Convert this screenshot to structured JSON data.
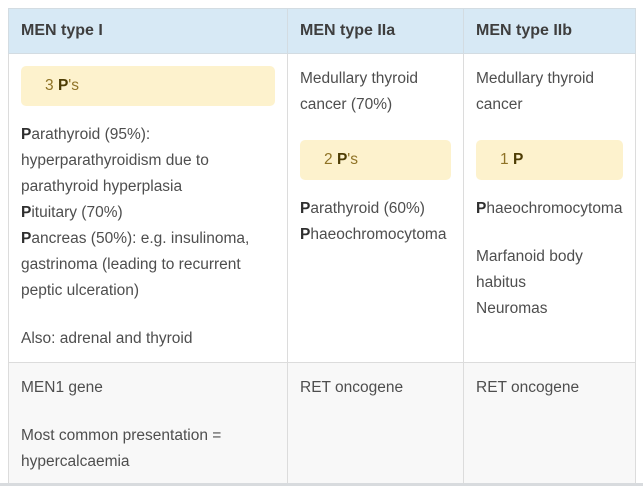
{
  "colors": {
    "header_bg": "#d7e9f5",
    "header_text": "#3e3e3e",
    "body_text": "#4e4e4e",
    "bold_text": "#2f2f2f",
    "border": "#dcdcdc",
    "highlight_bg": "#fdf2cd",
    "highlight_text": "#8f7326",
    "highlight_bold_text": "#4e3d04",
    "alt_row_bg": "#f8f8f8",
    "bottom_strip": "#d8dbde"
  },
  "table": {
    "columns": [
      {
        "header": "MEN type I",
        "row1": [
          {
            "highlight": true,
            "segments": [
              {
                "t": "3 "
              },
              {
                "t": "P",
                "b": true
              },
              {
                "t": "'s"
              }
            ]
          },
          {
            "segments": [
              {
                "t": "P",
                "b": true
              },
              {
                "t": "arathyroid (95%): hyperparathyroidism due to parathyroid hyperplasia"
              },
              {
                "br": true
              },
              {
                "t": "P",
                "b": true
              },
              {
                "t": "ituitary (70%)"
              },
              {
                "br": true
              },
              {
                "t": "P",
                "b": true
              },
              {
                "t": "ancreas (50%): e.g. insulinoma, gastrinoma (leading to recurrent peptic ulceration)"
              }
            ]
          },
          {
            "segments": [
              {
                "t": "Also: adrenal and thyroid"
              }
            ]
          }
        ],
        "row2": [
          {
            "segments": [
              {
                "t": "MEN1 gene"
              }
            ]
          },
          {
            "segments": [
              {
                "t": "Most common presentation = hypercalcaemia"
              }
            ]
          }
        ]
      },
      {
        "header": "MEN type IIa",
        "row1": [
          {
            "segments": [
              {
                "t": "Medullary thyroid cancer (70%)"
              }
            ]
          },
          {
            "highlight": true,
            "segments": [
              {
                "t": "2 "
              },
              {
                "t": "P",
                "b": true
              },
              {
                "t": "'s"
              }
            ]
          },
          {
            "segments": [
              {
                "t": "P",
                "b": true
              },
              {
                "t": "arathyroid (60%)"
              },
              {
                "br": true
              },
              {
                "t": "P",
                "b": true
              },
              {
                "t": "haeochromocytoma"
              }
            ]
          }
        ],
        "row2": [
          {
            "segments": [
              {
                "t": "RET oncogene"
              }
            ]
          }
        ]
      },
      {
        "header": "MEN type IIb",
        "row1": [
          {
            "segments": [
              {
                "t": "Medullary thyroid cancer"
              }
            ]
          },
          {
            "highlight": true,
            "segments": [
              {
                "t": "1 "
              },
              {
                "t": "P",
                "b": true
              }
            ]
          },
          {
            "segments": [
              {
                "t": "P",
                "b": true
              },
              {
                "t": "haeochromocytoma"
              }
            ]
          },
          {
            "segments": [
              {
                "t": "Marfanoid body habitus"
              },
              {
                "br": true
              },
              {
                "t": "Neuromas"
              }
            ]
          }
        ],
        "row2": [
          {
            "segments": [
              {
                "t": "RET oncogene"
              }
            ]
          }
        ]
      }
    ]
  }
}
